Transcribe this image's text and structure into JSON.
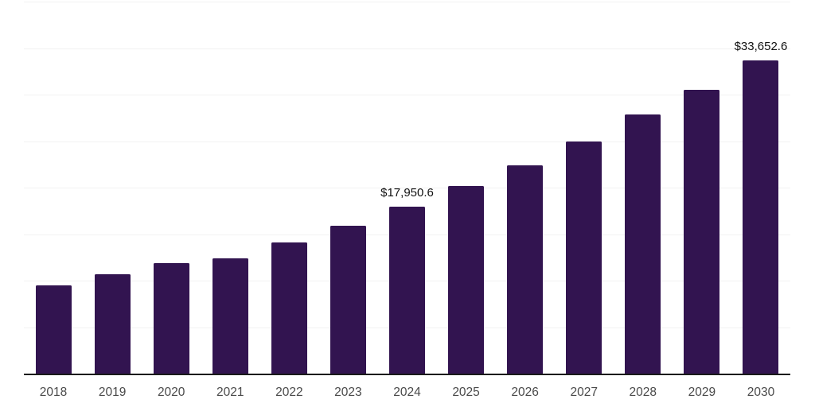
{
  "chart_data": {
    "type": "bar",
    "title": "",
    "xlabel": "",
    "ylabel": "",
    "categories": [
      "2018",
      "2019",
      "2020",
      "2021",
      "2022",
      "2023",
      "2024",
      "2025",
      "2026",
      "2027",
      "2028",
      "2029",
      "2030"
    ],
    "values": [
      9500,
      10700,
      11900,
      12400,
      14100,
      15900,
      17950.6,
      20200,
      22400,
      25000,
      27900,
      30500,
      33652.6
    ],
    "data_labels": [
      {
        "category": "2024",
        "text": "$17,950.6"
      },
      {
        "category": "2030",
        "text": "$33,652.6"
      }
    ],
    "ylim": [
      0,
      40000
    ],
    "grid_step": 5000,
    "grid": true,
    "legend": false,
    "colors": {
      "bar": "#321450",
      "gridline": "#f2f2f2",
      "axis_line": "#1a1a1a",
      "tick_label": "#4a4a4a",
      "data_label": "#111111",
      "background": "#ffffff"
    }
  }
}
